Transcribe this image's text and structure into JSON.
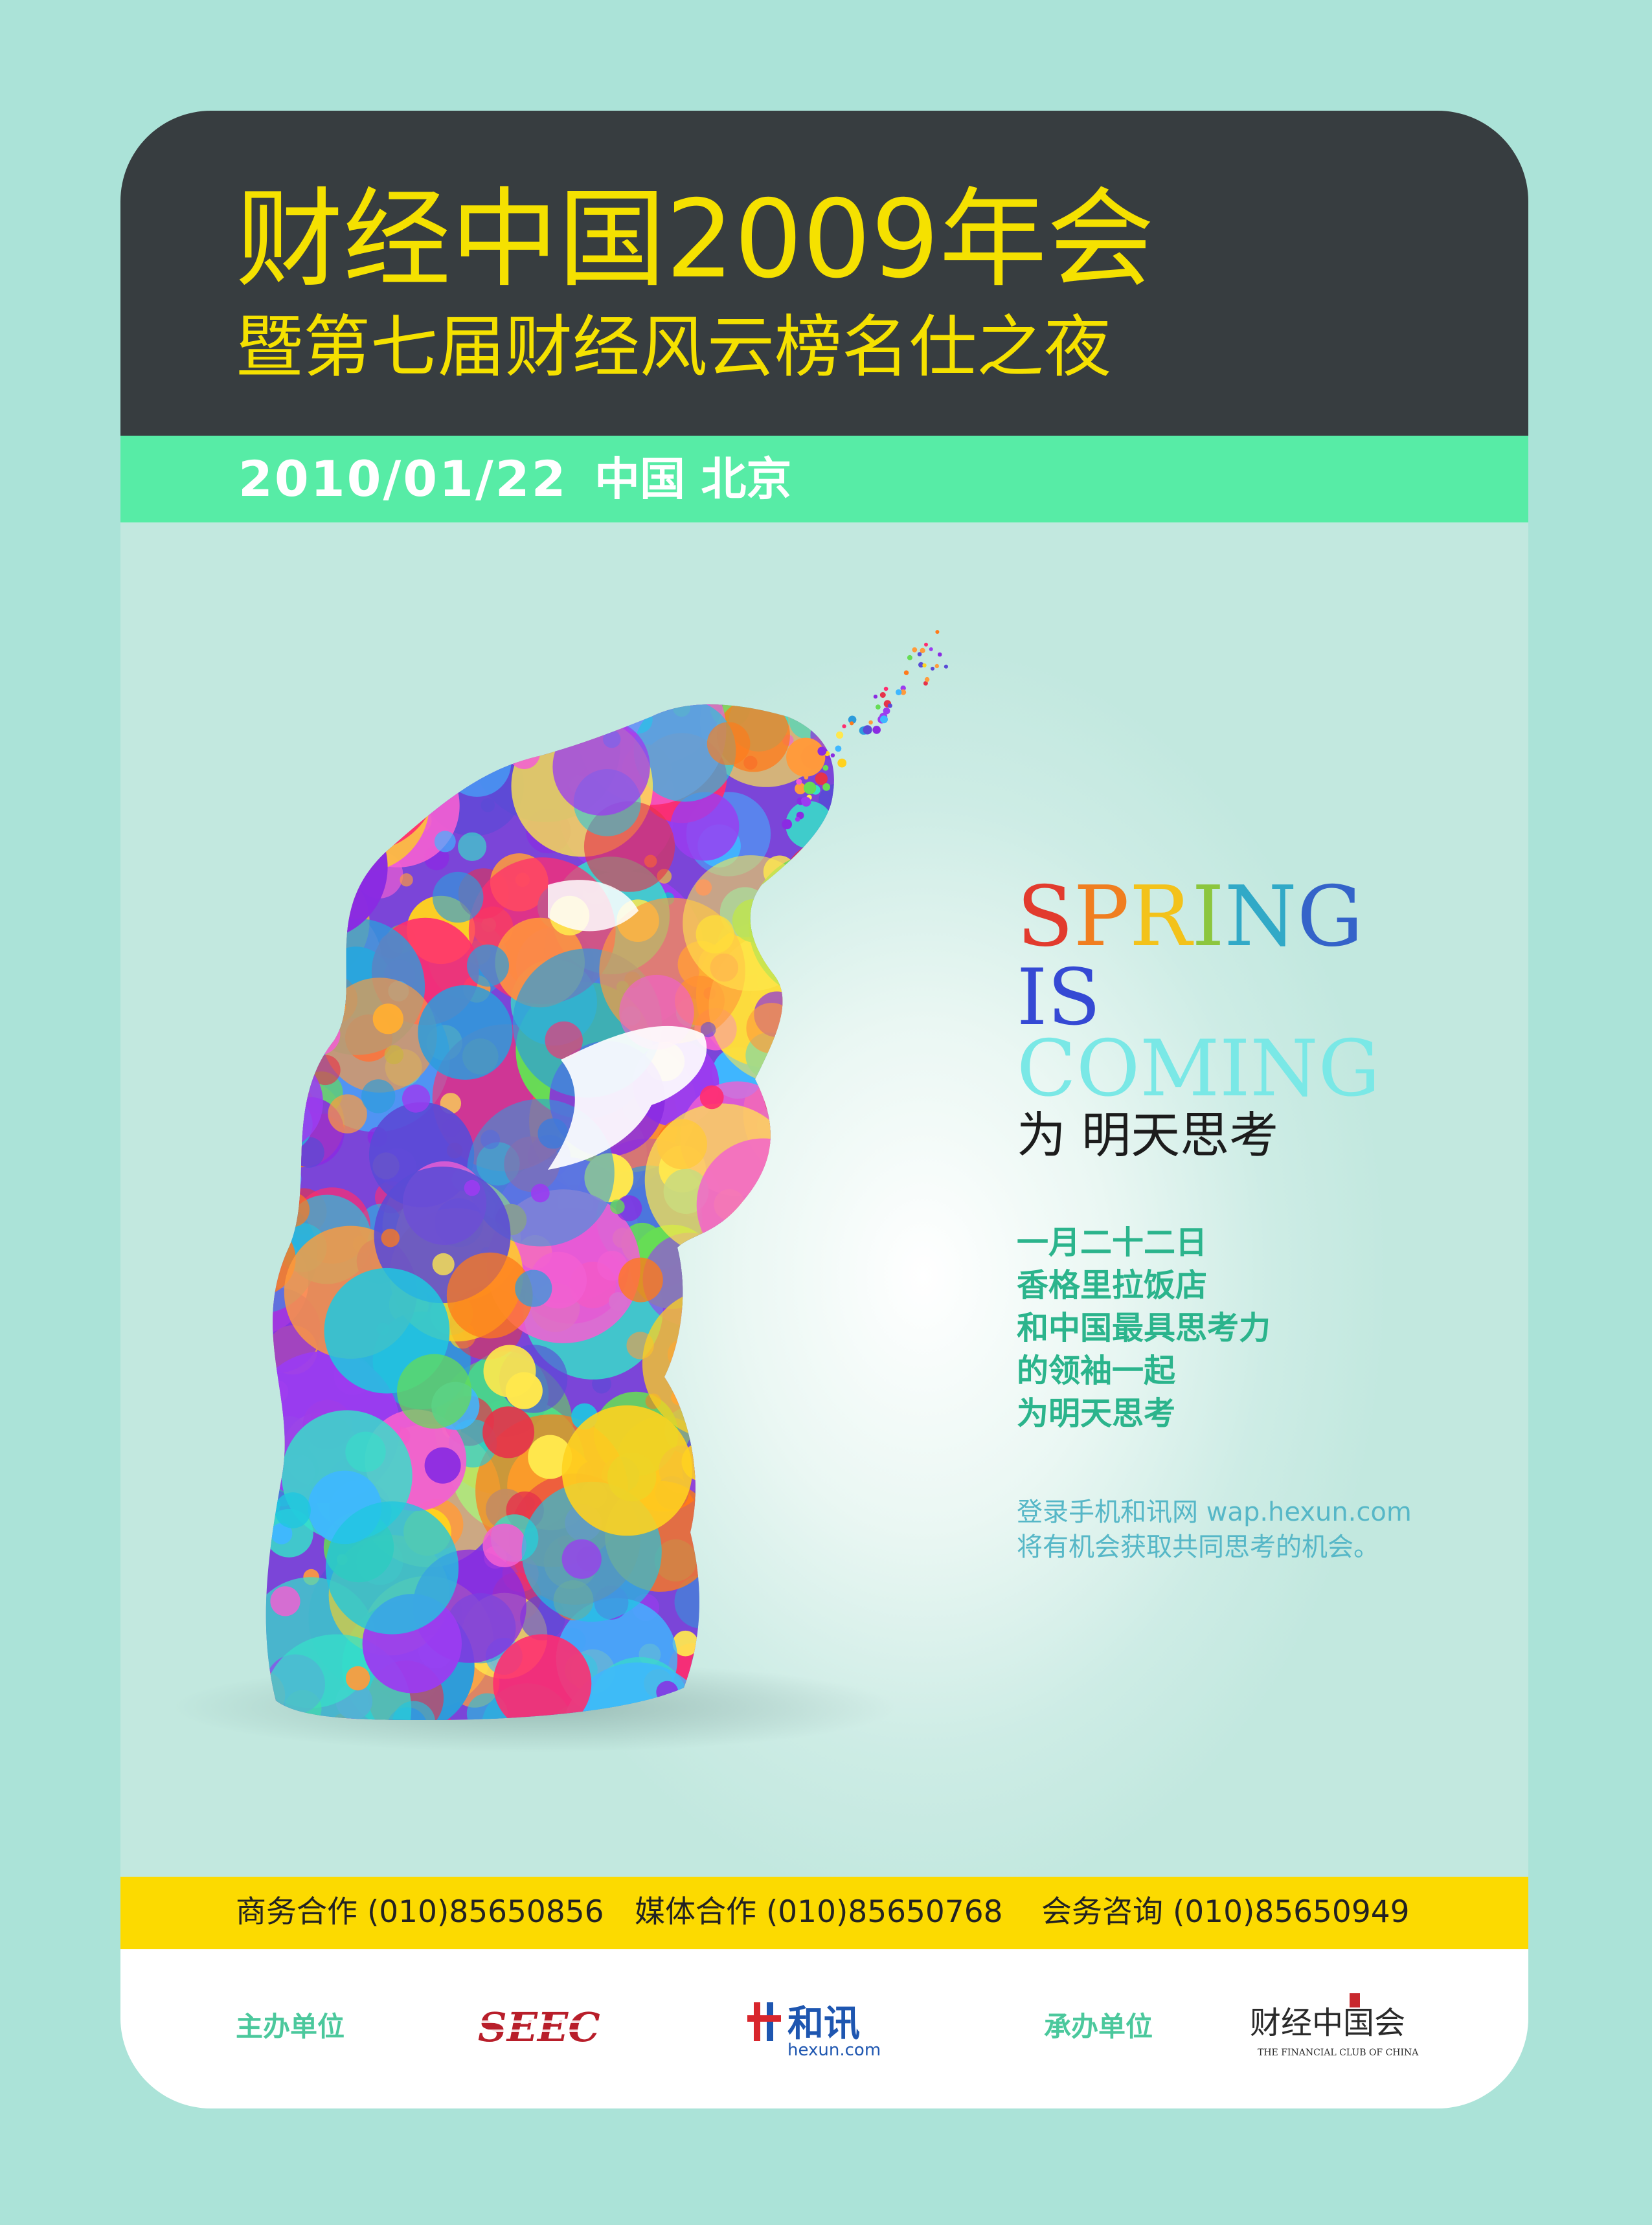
{
  "header": {
    "title": "财经中国2009年会",
    "subtitle": "暨第七届财经风云榜名仕之夜"
  },
  "event": {
    "date": "2010/01/22",
    "location": "中国 北京"
  },
  "slogan": {
    "spring_letters": [
      {
        "ch": "S",
        "color": "#e23b2e"
      },
      {
        "ch": "P",
        "color": "#f07e20"
      },
      {
        "ch": "R",
        "color": "#f3c21a"
      },
      {
        "ch": "I",
        "color": "#8cc63e"
      },
      {
        "ch": "N",
        "color": "#31a9c7"
      },
      {
        "ch": "G",
        "color": "#3463c9"
      }
    ],
    "is": "IS",
    "coming": "COMING",
    "tagline": "为 明天思考"
  },
  "details": [
    "一月二十二日",
    "香格里拉饭店",
    "和中国最具思考力",
    "的领袖一起",
    "为明天思考"
  ],
  "note": {
    "line1": "登录手机和讯网 wap.hexun.com",
    "line2": "将有机会获取共同思考的机会。"
  },
  "contacts": [
    "商务合作 (010)85650856",
    "媒体合作 (010)85650768",
    "会务咨询 (010)85650949"
  ],
  "sponsors": {
    "organizer_label": "主办单位",
    "coorganizer_label": "承办单位",
    "seec_logo": "SEEC",
    "hexun_logo": "和讯",
    "hexun_domain": "hexun.com",
    "club_logo": "财经中国会",
    "club_english": "THE FINANCIAL CLUB OF CHINA"
  },
  "colors": {
    "background": "#abe3d8",
    "header": "#373d40",
    "title_yellow": "#f5e100",
    "date_band": "#57eca6",
    "contact_band": "#fcda00",
    "detail_green": "#2bb48c"
  }
}
